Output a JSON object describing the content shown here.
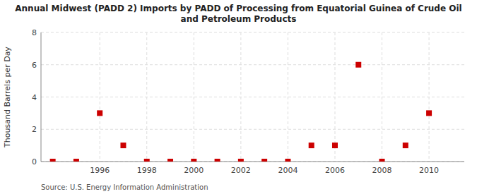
{
  "chart_data": {
    "type": "scatter",
    "title": "Annual Midwest (PADD 2) Imports by PADD of Processing from Equatorial Guinea of Crude Oil\nand Petroleum Products",
    "ylabel": "Thousand Barrels per Day",
    "source": "Source: U.S. Energy Information Administration",
    "x": [
      1994,
      1995,
      1996,
      1997,
      1998,
      1999,
      2000,
      2001,
      2002,
      2003,
      2004,
      2005,
      2006,
      2007,
      2008,
      2009,
      2010
    ],
    "values": [
      0,
      0,
      3,
      1,
      0,
      0,
      0,
      0,
      0,
      0,
      0,
      1,
      1,
      6,
      0,
      1,
      3
    ],
    "xlim": [
      1993.5,
      2011.5
    ],
    "ylim": [
      0,
      8
    ],
    "xticks": [
      1996,
      1998,
      2000,
      2002,
      2004,
      2006,
      2008,
      2010
    ],
    "yticks": [
      0,
      2,
      4,
      6,
      8
    ],
    "color": "#cc0000",
    "marker": "square",
    "grid": true
  }
}
